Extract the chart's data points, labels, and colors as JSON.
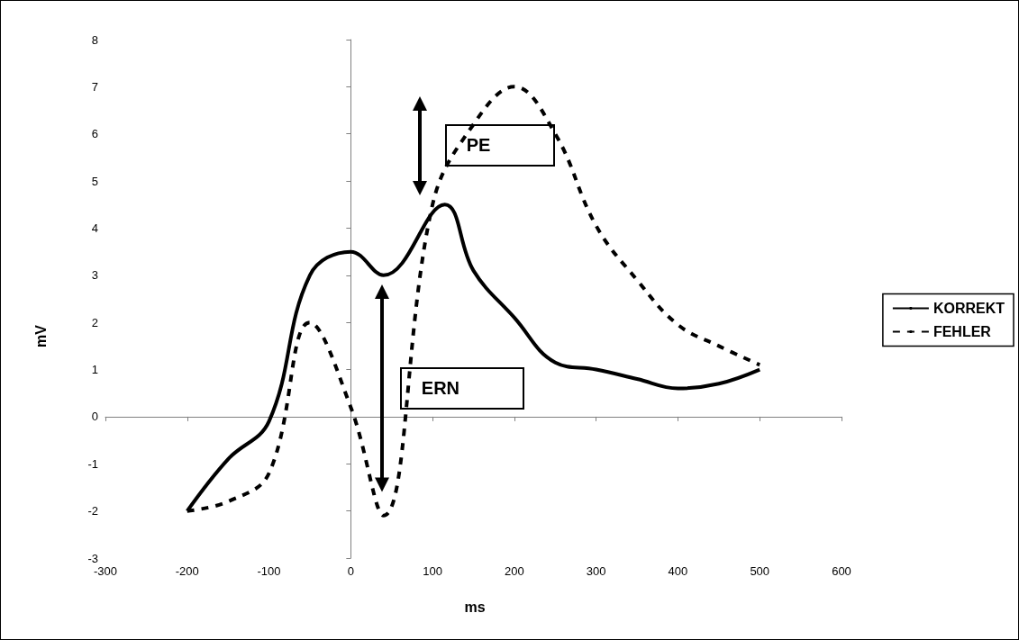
{
  "chart_data": {
    "type": "line",
    "xlabel": "ms",
    "ylabel": "mV",
    "xlim": [
      -300,
      600
    ],
    "xticks": [
      -300,
      -200,
      -100,
      0,
      100,
      200,
      300,
      400,
      500,
      600
    ],
    "ylim": [
      -3,
      8
    ],
    "yticks": [
      -3,
      -2,
      -1,
      0,
      1,
      2,
      3,
      4,
      5,
      6,
      7,
      8
    ],
    "legend": "right",
    "marker": "none",
    "series": [
      {
        "name": "KORREKT",
        "color": "#000000",
        "line_style": "solid",
        "x": [
          -200,
          -150,
          -100,
          -50,
          0,
          40,
          115,
          150,
          200,
          250,
          300,
          350,
          400,
          450,
          500
        ],
        "values": [
          -2,
          -0.9,
          -0.1,
          3,
          3.5,
          3,
          4.5,
          3.1,
          2.1,
          1.15,
          1,
          0.8,
          0.6,
          0.7,
          1
        ]
      },
      {
        "name": "FEHLER",
        "color": "#000000",
        "line_style": "dashed",
        "x": [
          -200,
          -150,
          -100,
          -50,
          0,
          40,
          100,
          150,
          200,
          250,
          300,
          350,
          400,
          450,
          500
        ],
        "values": [
          -2,
          -1.8,
          -1.2,
          2,
          0.2,
          -2.1,
          4.5,
          6.2,
          7,
          6,
          4.05,
          2.9,
          1.95,
          1.5,
          1.1
        ]
      }
    ],
    "annotations": [
      "PE",
      "ERN"
    ]
  }
}
